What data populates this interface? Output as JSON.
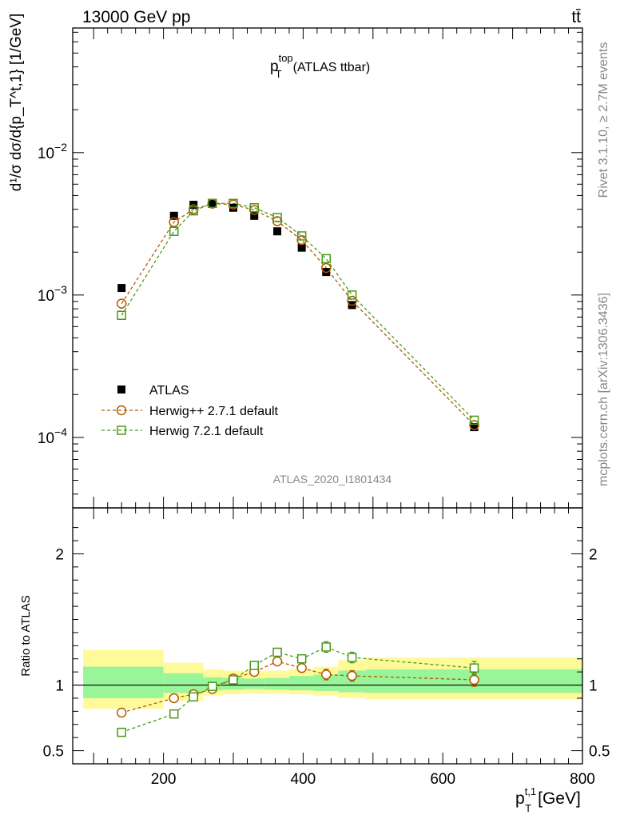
{
  "header": {
    "left": "13000 GeV pp",
    "right": "tt̄"
  },
  "side_texts": {
    "rivet": "Rivet 3.1.10, ≥ 2.7M events",
    "mcplots": "mcplots.cern.ch [arXiv:1306.3436]"
  },
  "analysis_id": "ATLAS_2020_I1801434",
  "chart_data": [
    {
      "type": "scatter",
      "title_main": "p",
      "title_sup": "top",
      "title_sub": "T",
      "title_rest": "(ATLAS ttbar)",
      "ylabel": "d¹/σ dσ/d{p_T^t,1} [1/GeV]",
      "yscale": "log",
      "xlim": [
        70,
        800
      ],
      "ylim": [
        3.2e-05,
        0.075
      ],
      "yticks": [
        {
          "value": 0.01,
          "base": "10",
          "exp": "−2"
        },
        {
          "value": 0.001,
          "base": "10",
          "exp": "−3"
        },
        {
          "value": 0.0001,
          "base": "10",
          "exp": "−4"
        }
      ],
      "legend_position": "lower-left",
      "series": [
        {
          "name": "ATLAS",
          "marker": "filled-square",
          "color": "#000000",
          "x": [
            140,
            215,
            243,
            270,
            300,
            330,
            363,
            398,
            433,
            470,
            645
          ],
          "y": [
            0.00112,
            0.0036,
            0.0043,
            0.0044,
            0.0041,
            0.0036,
            0.0028,
            0.00215,
            0.00145,
            0.00085,
            0.000118
          ]
        },
        {
          "name": "Herwig++ 2.7.1 default",
          "marker": "open-circle",
          "color": "#b35900",
          "x": [
            140,
            215,
            243,
            270,
            300,
            330,
            363,
            398,
            433,
            470,
            645
          ],
          "y": [
            0.00087,
            0.00325,
            0.004,
            0.00438,
            0.00432,
            0.00395,
            0.0033,
            0.00243,
            0.00155,
            0.00091,
            0.000122
          ]
        },
        {
          "name": "Herwig 7.2.1 default",
          "marker": "open-square",
          "color": "#4a9a1a",
          "x": [
            140,
            215,
            243,
            270,
            300,
            330,
            363,
            398,
            433,
            470,
            645
          ],
          "y": [
            0.00072,
            0.0028,
            0.0039,
            0.0044,
            0.0044,
            0.0041,
            0.0035,
            0.0026,
            0.0018,
            0.001,
            0.000132
          ]
        }
      ]
    },
    {
      "type": "scatter",
      "ylabel": "Ratio to ATLAS",
      "xlabel_main": "p",
      "xlabel_sup": "t,1",
      "xlabel_sub": "T",
      "xlabel_unit": "[GeV]",
      "xlim": [
        70,
        800
      ],
      "ylim": [
        0.4,
        2.35
      ],
      "xticks": [
        200,
        400,
        600,
        800
      ],
      "yticks": [
        0.5,
        1,
        2
      ],
      "bands": [
        {
          "x0": 85,
          "x1": 200,
          "lo": 0.82,
          "hi": 1.27,
          "inner_lo": 0.9,
          "inner_hi": 1.14
        },
        {
          "x0": 200,
          "x1": 257,
          "lo": 0.88,
          "hi": 1.17,
          "inner_lo": 0.94,
          "inner_hi": 1.09
        },
        {
          "x0": 257,
          "x1": 285,
          "lo": 0.92,
          "hi": 1.12,
          "inner_lo": 0.96,
          "inner_hi": 1.06
        },
        {
          "x0": 285,
          "x1": 315,
          "lo": 0.93,
          "hi": 1.11,
          "inner_lo": 0.965,
          "inner_hi": 1.055
        },
        {
          "x0": 315,
          "x1": 345,
          "lo": 0.935,
          "hi": 1.105,
          "inner_lo": 0.97,
          "inner_hi": 1.05
        },
        {
          "x0": 345,
          "x1": 380,
          "lo": 0.935,
          "hi": 1.11,
          "inner_lo": 0.965,
          "inner_hi": 1.055
        },
        {
          "x0": 380,
          "x1": 415,
          "lo": 0.93,
          "hi": 1.12,
          "inner_lo": 0.96,
          "inner_hi": 1.07
        },
        {
          "x0": 415,
          "x1": 450,
          "lo": 0.92,
          "hi": 1.14,
          "inner_lo": 0.955,
          "inner_hi": 1.08
        },
        {
          "x0": 450,
          "x1": 490,
          "lo": 0.9,
          "hi": 1.19,
          "inner_lo": 0.945,
          "inner_hi": 1.11
        },
        {
          "x0": 490,
          "x1": 800,
          "lo": 0.89,
          "hi": 1.21,
          "inner_lo": 0.94,
          "inner_hi": 1.12
        }
      ],
      "series": [
        {
          "name": "Herwig++ 2.7.1 default",
          "marker": "open-circle",
          "color": "#b35900",
          "x": [
            140,
            215,
            243,
            270,
            300,
            330,
            363,
            398,
            433,
            470,
            645
          ],
          "y": [
            0.79,
            0.9,
            0.93,
            0.97,
            1.05,
            1.1,
            1.18,
            1.13,
            1.08,
            1.07,
            1.04
          ],
          "err": [
            0.03,
            0.03,
            0.025,
            0.02,
            0.02,
            0.025,
            0.03,
            0.03,
            0.04,
            0.04,
            0.05
          ]
        },
        {
          "name": "Herwig 7.2.1 default",
          "marker": "open-square",
          "color": "#4a9a1a",
          "x": [
            140,
            215,
            243,
            270,
            300,
            330,
            363,
            398,
            433,
            470,
            645
          ],
          "y": [
            0.64,
            0.78,
            0.91,
            0.99,
            1.04,
            1.15,
            1.25,
            1.2,
            1.29,
            1.21,
            1.13
          ],
          "err": [
            0.025,
            0.025,
            0.02,
            0.02,
            0.02,
            0.025,
            0.03,
            0.03,
            0.04,
            0.04,
            0.05
          ]
        }
      ]
    }
  ]
}
